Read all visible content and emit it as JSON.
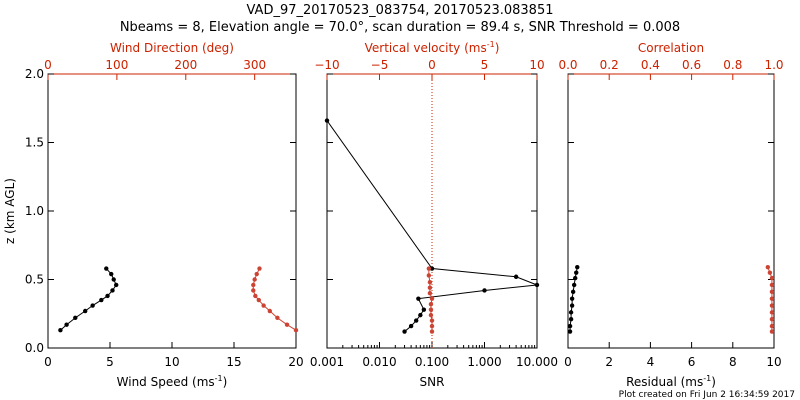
{
  "header": {
    "title": "VAD_97_20170523_083754, 20170523.083851",
    "subtitle": "Nbeams = 8, Elevation angle = 70.0°, scan duration = 89.4 s, SNR Threshold = 0.008"
  },
  "footer": {
    "text": "Plot created on Fri Jun  2 16:34:59 2017"
  },
  "colors": {
    "black_series": "#000000",
    "red_series": "#cc4433",
    "red_axis": "#cc2200",
    "dotted_line": "#cc2200"
  },
  "chart_data": [
    {
      "type": "line",
      "panel": "wind",
      "ylabel": "z (km AGL)",
      "ylim": [
        0,
        2.0
      ],
      "y_ticks": [
        "0.0",
        "0.5",
        "1.0",
        "1.5",
        "2.0"
      ],
      "xlabel_bottom": "Wind Speed (ms",
      "xlabel_bottom_sup": "-1",
      "xlabel_bottom_tail": ")",
      "xlim_bottom": [
        0,
        20
      ],
      "x_ticks_bottom": [
        "0",
        "5",
        "10",
        "15",
        "20"
      ],
      "xlabel_top": "Wind Direction (deg)",
      "xlim_top": [
        0,
        360
      ],
      "x_ticks_top": [
        "0",
        "100",
        "200",
        "300"
      ],
      "series": [
        {
          "axis": "bottom",
          "color": "black",
          "points": [
            [
              1.0,
              0.13
            ],
            [
              1.5,
              0.17
            ],
            [
              2.2,
              0.22
            ],
            [
              3.0,
              0.27
            ],
            [
              3.6,
              0.31
            ],
            [
              4.3,
              0.35
            ],
            [
              4.8,
              0.38
            ],
            [
              5.2,
              0.42
            ],
            [
              5.5,
              0.46
            ],
            [
              5.3,
              0.5
            ],
            [
              5.1,
              0.54
            ],
            [
              4.7,
              0.58
            ]
          ]
        },
        {
          "axis": "top",
          "color": "red",
          "points": [
            [
              360,
              0.13
            ],
            [
              347,
              0.17
            ],
            [
              333,
              0.22
            ],
            [
              322,
              0.27
            ],
            [
              313,
              0.31
            ],
            [
              306,
              0.35
            ],
            [
              301,
              0.38
            ],
            [
              298,
              0.42
            ],
            [
              298,
              0.46
            ],
            [
              300,
              0.5
            ],
            [
              303,
              0.54
            ],
            [
              307,
              0.58
            ]
          ]
        }
      ]
    },
    {
      "type": "line",
      "panel": "vertical",
      "xlabel_bottom": "SNR",
      "x_scale_bottom": "log",
      "xlim_bottom": [
        0.001,
        10
      ],
      "x_ticks_bottom": [
        "0.001",
        "0.010",
        "0.100",
        "1.000",
        "10.000"
      ],
      "xlabel_top": "Vertical velocity (ms",
      "xlabel_top_sup": "-1",
      "xlabel_top_tail": ")",
      "xlim_top": [
        -10,
        10
      ],
      "x_ticks_top": [
        "−10",
        "−5",
        "0",
        "5",
        "10"
      ],
      "ylim": [
        0,
        2.0
      ],
      "series": [
        {
          "axis": "bottom",
          "color": "black",
          "points": [
            [
              0.03,
              0.12
            ],
            [
              0.04,
              0.16
            ],
            [
              0.05,
              0.2
            ],
            [
              0.06,
              0.24
            ],
            [
              0.07,
              0.28
            ],
            [
              0.055,
              0.36
            ],
            [
              1.0,
              0.42
            ],
            [
              10.0,
              0.46
            ],
            [
              4.0,
              0.52
            ],
            [
              0.1,
              0.58
            ],
            [
              0.001,
              1.66
            ]
          ]
        },
        {
          "axis": "top",
          "color": "red",
          "points": [
            [
              0,
              0.12
            ],
            [
              0,
              0.16
            ],
            [
              0,
              0.2
            ],
            [
              -0.1,
              0.24
            ],
            [
              -0.1,
              0.28
            ],
            [
              -0.1,
              0.32
            ],
            [
              0,
              0.36
            ],
            [
              -0.2,
              0.4
            ],
            [
              -0.2,
              0.44
            ],
            [
              -0.2,
              0.48
            ],
            [
              -0.3,
              0.53
            ],
            [
              -0.3,
              0.58
            ]
          ]
        }
      ],
      "reference_line": {
        "axis": "top",
        "x": 0,
        "style": "dotted"
      }
    },
    {
      "type": "line",
      "panel": "residual",
      "xlabel_bottom": "Residual  (ms",
      "xlabel_bottom_sup": "-1",
      "xlabel_bottom_tail": ")",
      "xlim_bottom": [
        0,
        10
      ],
      "x_ticks_bottom": [
        "0",
        "2",
        "4",
        "6",
        "8",
        "10"
      ],
      "xlabel_top": "Correlation",
      "xlim_top": [
        0,
        1
      ],
      "x_ticks_top": [
        "0.0",
        "0.2",
        "0.4",
        "0.6",
        "0.8",
        "1.0"
      ],
      "ylim": [
        0,
        2.0
      ],
      "series": [
        {
          "axis": "bottom",
          "color": "black",
          "points": [
            [
              0.1,
              0.12
            ],
            [
              0.1,
              0.16
            ],
            [
              0.15,
              0.21
            ],
            [
              0.15,
              0.26
            ],
            [
              0.2,
              0.31
            ],
            [
              0.2,
              0.36
            ],
            [
              0.25,
              0.41
            ],
            [
              0.3,
              0.46
            ],
            [
              0.35,
              0.51
            ],
            [
              0.4,
              0.55
            ],
            [
              0.45,
              0.59
            ]
          ]
        },
        {
          "axis": "top",
          "color": "red",
          "points": [
            [
              0.99,
              0.12
            ],
            [
              0.99,
              0.16
            ],
            [
              0.99,
              0.21
            ],
            [
              0.99,
              0.26
            ],
            [
              0.99,
              0.31
            ],
            [
              0.99,
              0.36
            ],
            [
              0.99,
              0.41
            ],
            [
              0.99,
              0.46
            ],
            [
              0.99,
              0.51
            ],
            [
              0.98,
              0.55
            ],
            [
              0.97,
              0.59
            ]
          ]
        }
      ]
    }
  ]
}
